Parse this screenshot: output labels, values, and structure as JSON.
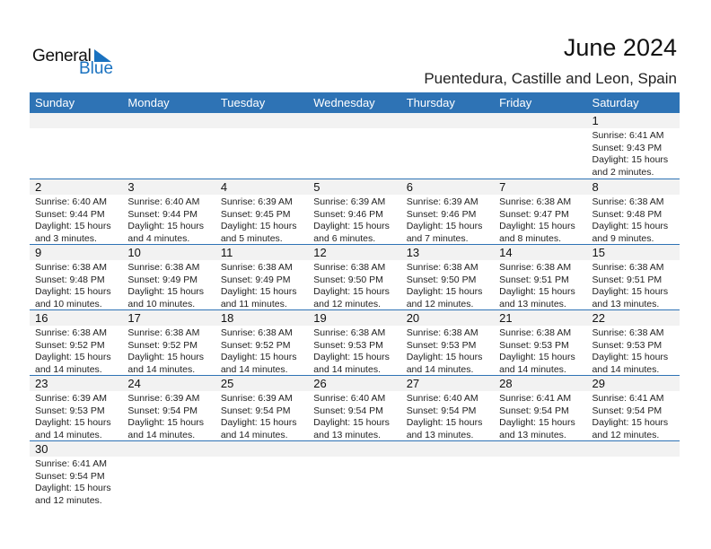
{
  "logo": {
    "text_general": "General",
    "text_blue": "Blue"
  },
  "header": {
    "title": "June 2024",
    "subtitle": "Puentedura, Castille and Leon, Spain"
  },
  "colors": {
    "accent": "#2e73b5",
    "date_strip": "#f2f2f2",
    "logo_blue": "#1a72c0"
  },
  "weekdays": [
    "Sunday",
    "Monday",
    "Tuesday",
    "Wednesday",
    "Thursday",
    "Friday",
    "Saturday"
  ],
  "weeks": [
    [
      null,
      null,
      null,
      null,
      null,
      null,
      {
        "day": "1",
        "sunrise": "Sunrise: 6:41 AM",
        "sunset": "Sunset: 9:43 PM",
        "daylight": "Daylight: 15 hours",
        "minutes": "and 2 minutes."
      }
    ],
    [
      {
        "day": "2",
        "sunrise": "Sunrise: 6:40 AM",
        "sunset": "Sunset: 9:44 PM",
        "daylight": "Daylight: 15 hours",
        "minutes": "and 3 minutes."
      },
      {
        "day": "3",
        "sunrise": "Sunrise: 6:40 AM",
        "sunset": "Sunset: 9:44 PM",
        "daylight": "Daylight: 15 hours",
        "minutes": "and 4 minutes."
      },
      {
        "day": "4",
        "sunrise": "Sunrise: 6:39 AM",
        "sunset": "Sunset: 9:45 PM",
        "daylight": "Daylight: 15 hours",
        "minutes": "and 5 minutes."
      },
      {
        "day": "5",
        "sunrise": "Sunrise: 6:39 AM",
        "sunset": "Sunset: 9:46 PM",
        "daylight": "Daylight: 15 hours",
        "minutes": "and 6 minutes."
      },
      {
        "day": "6",
        "sunrise": "Sunrise: 6:39 AM",
        "sunset": "Sunset: 9:46 PM",
        "daylight": "Daylight: 15 hours",
        "minutes": "and 7 minutes."
      },
      {
        "day": "7",
        "sunrise": "Sunrise: 6:38 AM",
        "sunset": "Sunset: 9:47 PM",
        "daylight": "Daylight: 15 hours",
        "minutes": "and 8 minutes."
      },
      {
        "day": "8",
        "sunrise": "Sunrise: 6:38 AM",
        "sunset": "Sunset: 9:48 PM",
        "daylight": "Daylight: 15 hours",
        "minutes": "and 9 minutes."
      }
    ],
    [
      {
        "day": "9",
        "sunrise": "Sunrise: 6:38 AM",
        "sunset": "Sunset: 9:48 PM",
        "daylight": "Daylight: 15 hours",
        "minutes": "and 10 minutes."
      },
      {
        "day": "10",
        "sunrise": "Sunrise: 6:38 AM",
        "sunset": "Sunset: 9:49 PM",
        "daylight": "Daylight: 15 hours",
        "minutes": "and 10 minutes."
      },
      {
        "day": "11",
        "sunrise": "Sunrise: 6:38 AM",
        "sunset": "Sunset: 9:49 PM",
        "daylight": "Daylight: 15 hours",
        "minutes": "and 11 minutes."
      },
      {
        "day": "12",
        "sunrise": "Sunrise: 6:38 AM",
        "sunset": "Sunset: 9:50 PM",
        "daylight": "Daylight: 15 hours",
        "minutes": "and 12 minutes."
      },
      {
        "day": "13",
        "sunrise": "Sunrise: 6:38 AM",
        "sunset": "Sunset: 9:50 PM",
        "daylight": "Daylight: 15 hours",
        "minutes": "and 12 minutes."
      },
      {
        "day": "14",
        "sunrise": "Sunrise: 6:38 AM",
        "sunset": "Sunset: 9:51 PM",
        "daylight": "Daylight: 15 hours",
        "minutes": "and 13 minutes."
      },
      {
        "day": "15",
        "sunrise": "Sunrise: 6:38 AM",
        "sunset": "Sunset: 9:51 PM",
        "daylight": "Daylight: 15 hours",
        "minutes": "and 13 minutes."
      }
    ],
    [
      {
        "day": "16",
        "sunrise": "Sunrise: 6:38 AM",
        "sunset": "Sunset: 9:52 PM",
        "daylight": "Daylight: 15 hours",
        "minutes": "and 14 minutes."
      },
      {
        "day": "17",
        "sunrise": "Sunrise: 6:38 AM",
        "sunset": "Sunset: 9:52 PM",
        "daylight": "Daylight: 15 hours",
        "minutes": "and 14 minutes."
      },
      {
        "day": "18",
        "sunrise": "Sunrise: 6:38 AM",
        "sunset": "Sunset: 9:52 PM",
        "daylight": "Daylight: 15 hours",
        "minutes": "and 14 minutes."
      },
      {
        "day": "19",
        "sunrise": "Sunrise: 6:38 AM",
        "sunset": "Sunset: 9:53 PM",
        "daylight": "Daylight: 15 hours",
        "minutes": "and 14 minutes."
      },
      {
        "day": "20",
        "sunrise": "Sunrise: 6:38 AM",
        "sunset": "Sunset: 9:53 PM",
        "daylight": "Daylight: 15 hours",
        "minutes": "and 14 minutes."
      },
      {
        "day": "21",
        "sunrise": "Sunrise: 6:38 AM",
        "sunset": "Sunset: 9:53 PM",
        "daylight": "Daylight: 15 hours",
        "minutes": "and 14 minutes."
      },
      {
        "day": "22",
        "sunrise": "Sunrise: 6:38 AM",
        "sunset": "Sunset: 9:53 PM",
        "daylight": "Daylight: 15 hours",
        "minutes": "and 14 minutes."
      }
    ],
    [
      {
        "day": "23",
        "sunrise": "Sunrise: 6:39 AM",
        "sunset": "Sunset: 9:53 PM",
        "daylight": "Daylight: 15 hours",
        "minutes": "and 14 minutes."
      },
      {
        "day": "24",
        "sunrise": "Sunrise: 6:39 AM",
        "sunset": "Sunset: 9:54 PM",
        "daylight": "Daylight: 15 hours",
        "minutes": "and 14 minutes."
      },
      {
        "day": "25",
        "sunrise": "Sunrise: 6:39 AM",
        "sunset": "Sunset: 9:54 PM",
        "daylight": "Daylight: 15 hours",
        "minutes": "and 14 minutes."
      },
      {
        "day": "26",
        "sunrise": "Sunrise: 6:40 AM",
        "sunset": "Sunset: 9:54 PM",
        "daylight": "Daylight: 15 hours",
        "minutes": "and 13 minutes."
      },
      {
        "day": "27",
        "sunrise": "Sunrise: 6:40 AM",
        "sunset": "Sunset: 9:54 PM",
        "daylight": "Daylight: 15 hours",
        "minutes": "and 13 minutes."
      },
      {
        "day": "28",
        "sunrise": "Sunrise: 6:41 AM",
        "sunset": "Sunset: 9:54 PM",
        "daylight": "Daylight: 15 hours",
        "minutes": "and 13 minutes."
      },
      {
        "day": "29",
        "sunrise": "Sunrise: 6:41 AM",
        "sunset": "Sunset: 9:54 PM",
        "daylight": "Daylight: 15 hours",
        "minutes": "and 12 minutes."
      }
    ],
    [
      {
        "day": "30",
        "sunrise": "Sunrise: 6:41 AM",
        "sunset": "Sunset: 9:54 PM",
        "daylight": "Daylight: 15 hours",
        "minutes": "and 12 minutes."
      },
      null,
      null,
      null,
      null,
      null,
      null
    ]
  ]
}
